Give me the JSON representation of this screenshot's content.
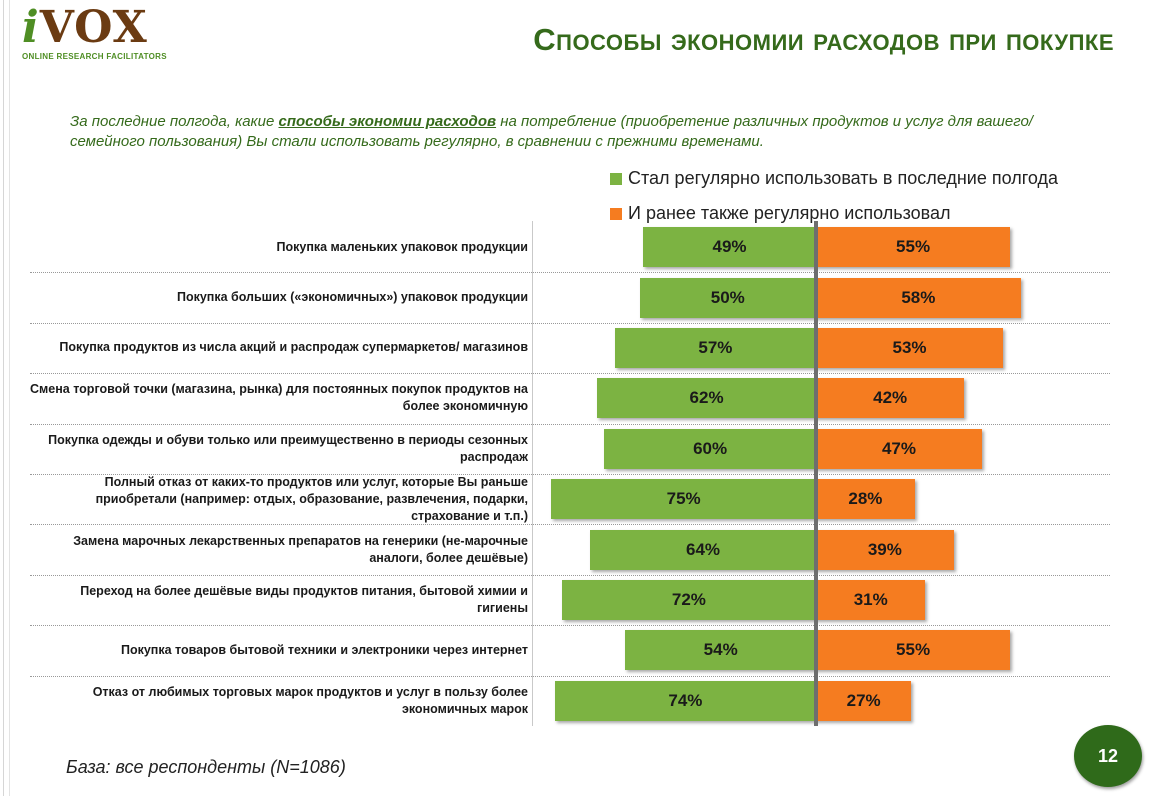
{
  "logo": {
    "word_i": "i",
    "word_rest": "VOX",
    "tagline": "ONLINE RESEARCH FACILITATORS"
  },
  "header": {
    "title": "Способы экономии расходов при покупке"
  },
  "question": {
    "before": "За последние полгода, какие ",
    "emphasis": "способы экономии расходов",
    "after": " на потребление (приобретение различных продуктов и услуг для вашего/ семейного пользования) Вы стали использовать регулярно, в сравнении с прежними временами."
  },
  "footer": {
    "base_note": "База: все респонденты (N=1086)",
    "page_number": "12"
  },
  "colors": {
    "green": "#7cb342",
    "orange": "#f57c20",
    "title_green": "#356a1b"
  },
  "chart_data": {
    "type": "bar",
    "orientation": "horizontal-diverging",
    "categories": [
      "Покупка маленьких упаковок продукции",
      "Покупка больших («экономичных») упаковок продукции",
      "Покупка продуктов из числа акций и распродаж супермаркетов/ магазинов",
      "Смена торговой точки (магазина, рынка) для постоянных покупок продуктов на более экономичную",
      "Покупка одежды и обуви только или преимущественно в периоды сезонных распродаж",
      "Полный отказ от каких-то продуктов или услуг, которые Вы раньше приобретали (например: отдых, образование, развлечения, подарки, страхование и т.п.)",
      "Замена марочных лекарственных препаратов на генерики (не-марочные аналоги, более дешёвые)",
      "Переход на более дешёвые виды продуктов питания, бытовой химии и гигиены",
      "Покупка товаров бытовой техники и электроники через интернет",
      "Отказ от любимых торговых марок продуктов и услуг в пользу более экономичных марок"
    ],
    "series": [
      {
        "name": "Стал регулярно использовать в последние полгода",
        "color": "#7cb342",
        "direction": "left",
        "values": [
          49,
          50,
          57,
          62,
          60,
          75,
          64,
          72,
          54,
          74
        ],
        "labels": [
          "49%",
          "50%",
          "57%",
          "62%",
          "60%",
          "75%",
          "64%",
          "72%",
          "54%",
          "74%"
        ]
      },
      {
        "name": "И ранее также регулярно использовал",
        "color": "#f57c20",
        "direction": "right",
        "values": [
          55,
          58,
          53,
          42,
          47,
          28,
          39,
          31,
          55,
          27
        ],
        "labels": [
          "55%",
          "58%",
          "53%",
          "42%",
          "47%",
          "28%",
          "39%",
          "31%",
          "55%",
          "27%"
        ]
      }
    ],
    "unit": "%",
    "legend_position": "top-right",
    "grid": false
  }
}
